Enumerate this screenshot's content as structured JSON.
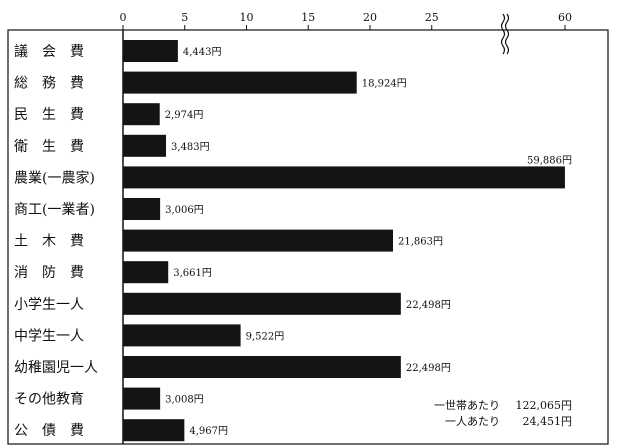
{
  "chart_data": {
    "type": "bar",
    "orientation": "horizontal",
    "title": "",
    "xlabel": "",
    "ylabel": "",
    "x_ticks": [
      "0",
      "5",
      "10",
      "15",
      "20",
      "25",
      "60"
    ],
    "axis_break": true,
    "xlim": [
      0,
      60
    ],
    "grid": false,
    "categories": [
      "議　会　費",
      "総　務　費",
      "民　生　費",
      "衛　生　費",
      "農業(一農家)",
      "商工(一業者)",
      "土　木　費",
      "消　防　費",
      "小学生一人",
      "中学生一人",
      "幼稚園児一人",
      "その他教育",
      "公　債　費"
    ],
    "values": [
      4443,
      18924,
      2974,
      3483,
      59886,
      3006,
      21863,
      3661,
      22498,
      9522,
      22498,
      3008,
      4967
    ],
    "value_labels": [
      "4,443円",
      "18,924円",
      "2,974円",
      "3,483円",
      "59,886円",
      "3,006円",
      "21,863円",
      "3,661円",
      "22,498円",
      "9,522円",
      "22,498円",
      "3,008円",
      "4,967円"
    ],
    "bar_color": "#141414",
    "summary": [
      {
        "label": "一世帯あたり",
        "value": "122,065円"
      },
      {
        "label": "一人あたり",
        "value": "24,451円"
      }
    ]
  }
}
